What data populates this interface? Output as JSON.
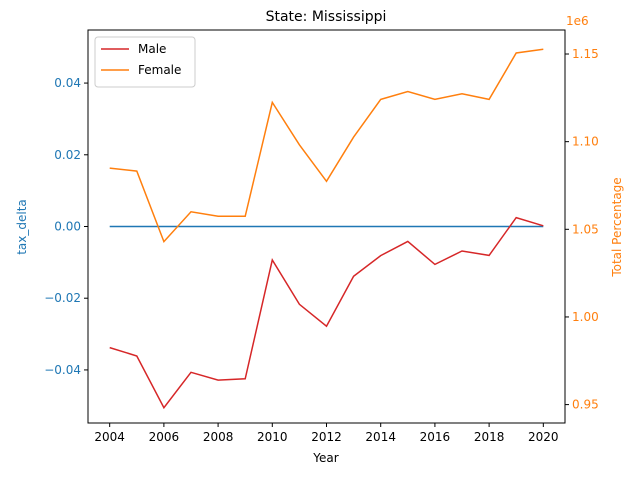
{
  "chart_data": {
    "type": "line",
    "title": "State: Mississippi",
    "xlabel": "Year",
    "ylabel_left": "tax_delta",
    "ylabel_right": "Total Percentage",
    "right_offset_label": "1e6",
    "x": [
      2004,
      2005,
      2006,
      2007,
      2008,
      2009,
      2010,
      2011,
      2012,
      2013,
      2014,
      2015,
      2016,
      2017,
      2018,
      2019,
      2020
    ],
    "xlim": [
      2003.2,
      2020.8
    ],
    "xticks": [
      2004,
      2006,
      2008,
      2010,
      2012,
      2014,
      2016,
      2018,
      2020
    ],
    "ylim_left": [
      -0.0548,
      0.0548
    ],
    "yticks_left": [
      -0.04,
      -0.02,
      0.0,
      0.02,
      0.04
    ],
    "ytick_labels_left": [
      "−0.04",
      "−0.02",
      "0.00",
      "0.02",
      "0.04"
    ],
    "ylim_right": [
      0.9395,
      1.1637
    ],
    "yticks_right": [
      0.95,
      1.0,
      1.05,
      1.1,
      1.15
    ],
    "ytick_labels_right": [
      "0.95",
      "1.00",
      "1.05",
      "1.10",
      "1.15"
    ],
    "tax_delta": [
      0,
      0,
      0,
      0,
      0,
      0,
      0,
      0,
      0,
      0,
      0,
      0,
      0,
      0,
      0,
      0,
      0
    ],
    "series": [
      {
        "name": "Male",
        "color": "#d62728",
        "axis": "right",
        "values": [
          0.9825,
          0.9777,
          0.9482,
          0.9684,
          0.964,
          0.9647,
          1.0325,
          1.0072,
          0.9947,
          1.0232,
          1.035,
          1.0431,
          1.03,
          1.0376,
          1.0351,
          1.0567,
          1.052
        ]
      },
      {
        "name": "Female",
        "color": "#ff7f0e",
        "axis": "right",
        "values": [
          1.0849,
          1.0832,
          1.043,
          1.06,
          1.0574,
          1.0574,
          1.1224,
          1.0982,
          1.0774,
          1.1026,
          1.1241,
          1.1286,
          1.1241,
          1.1273,
          1.1241,
          1.1506,
          1.1527
        ]
      }
    ],
    "tax_delta_color": "#1f77b4",
    "legend_position": "top-left",
    "grid": false
  }
}
